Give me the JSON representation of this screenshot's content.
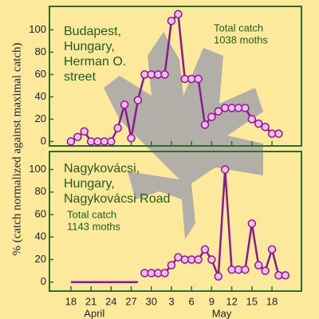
{
  "chart_data": [
    {
      "type": "line",
      "ylabel": "% (catch normalized against maximal catch)",
      "annotations": [
        [
          "Budapest,",
          "Hungary,",
          "Herman O.",
          "street"
        ],
        [
          "Total catch",
          "1038 moths"
        ]
      ],
      "xlim": [
        -3.2,
        34.4
      ],
      "ylim": [
        -4,
        121
      ],
      "xticks": [
        0,
        3,
        6,
        9,
        12,
        15,
        18,
        21,
        24,
        27,
        30
      ],
      "yticks": [
        0,
        20,
        40,
        60,
        80,
        100
      ],
      "series": [
        {
          "color": "#8b1a8b",
          "marker_color": "#f5b8f0",
          "markers": true,
          "x": [
            0,
            1,
            2,
            3,
            4,
            5,
            6,
            7,
            8,
            9,
            10,
            11,
            12,
            13,
            14,
            15,
            16,
            17,
            18,
            19,
            20,
            21,
            22,
            23,
            24,
            25,
            26,
            27,
            28,
            29,
            30,
            31
          ],
          "values": [
            0,
            4,
            9,
            0,
            0,
            0,
            0,
            12,
            33,
            3,
            37,
            60,
            60,
            60,
            60,
            108,
            114,
            56,
            56,
            56,
            15,
            22,
            27,
            30,
            30,
            30,
            30,
            20,
            16,
            13,
            7,
            7
          ]
        }
      ]
    },
    {
      "type": "line",
      "annotations": [
        [
          "Nagykovácsi,",
          "Hungary,",
          "Nagykovácsi Road"
        ],
        [
          "Total catch",
          "1143 moths"
        ]
      ],
      "xlim": [
        -3.2,
        34.4
      ],
      "ylim": [
        -8,
        116
      ],
      "xticks": [
        {
          "value": 0,
          "label": "18"
        },
        {
          "value": 3,
          "label": "21"
        },
        {
          "value": 6,
          "label": "24"
        },
        {
          "value": 9,
          "label": "27"
        },
        {
          "value": 12,
          "label": "30"
        },
        {
          "value": 15,
          "label": "3"
        },
        {
          "value": 18,
          "label": "6"
        },
        {
          "value": 21,
          "label": "9"
        },
        {
          "value": 24,
          "label": "12"
        },
        {
          "value": 27,
          "label": "15"
        },
        {
          "value": 30,
          "label": "18"
        }
      ],
      "month_labels": [
        {
          "value": 3.5,
          "label": "April"
        },
        {
          "value": 22.5,
          "label": "May"
        }
      ],
      "yticks": [
        0,
        20,
        40,
        60,
        80,
        100
      ],
      "series": [
        {
          "color": "#8b1a8b",
          "marker_color": "#f5b8f0",
          "markers": false,
          "x": [
            0,
            1,
            2,
            3,
            4,
            5,
            6,
            7,
            8,
            9,
            10
          ],
          "values": [
            0,
            0,
            0,
            0,
            0,
            0,
            0,
            0,
            0,
            0,
            0
          ]
        },
        {
          "color": "#8b1a8b",
          "marker_color": "#f5b8f0",
          "markers": true,
          "x": [
            11,
            12,
            13,
            14,
            15,
            16,
            17,
            18,
            19,
            20,
            21,
            22,
            23,
            24,
            25,
            26,
            27,
            28,
            29,
            30,
            31,
            32
          ],
          "values": [
            8,
            8,
            8,
            8,
            15,
            22,
            20,
            20,
            20,
            29,
            20,
            5,
            100,
            11,
            11,
            11,
            52,
            15,
            10,
            29,
            6,
            6
          ]
        }
      ]
    }
  ]
}
